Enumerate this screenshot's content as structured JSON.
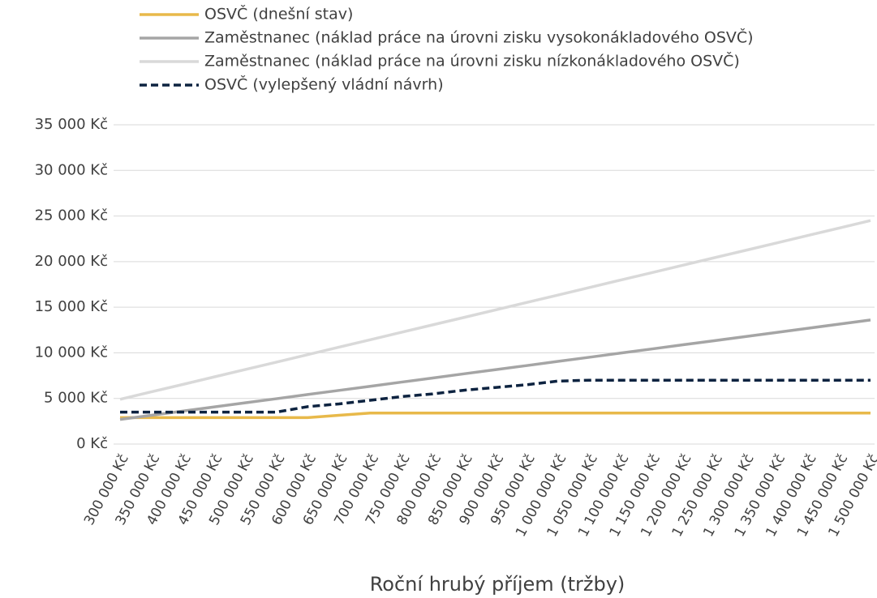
{
  "chart_data": {
    "type": "line",
    "x_label": "Roční hrubý příjem (tržby)",
    "categories": [
      "300 000 Kč",
      "350 000 Kč",
      "400 000 Kč",
      "450 000 Kč",
      "500 000 Kč",
      "550 000 Kč",
      "600 000 Kč",
      "650 000 Kč",
      "700 000 Kč",
      "750 000 Kč",
      "800 000 Kč",
      "850 000 Kč",
      "900 000 Kč",
      "950 000 Kč",
      "1 000 000 Kč",
      "1 050 000 Kč",
      "1 100 000 Kč",
      "1 150 000 Kč",
      "1 200 000 Kč",
      "1 250 000 Kč",
      "1 300 000 Kč",
      "1 350 000 Kč",
      "1 400 000 Kč",
      "1 450 000 Kč",
      "1 500 000 Kč"
    ],
    "series": [
      {
        "name": "OSVČ (dnešní stav)",
        "color": "#e8b94a",
        "dashed": false,
        "values": [
          2900,
          2900,
          2900,
          2900,
          2900,
          2900,
          2900,
          3150,
          3400,
          3400,
          3400,
          3400,
          3400,
          3400,
          3400,
          3400,
          3400,
          3400,
          3400,
          3400,
          3400,
          3400,
          3400,
          3400,
          3400
        ]
      },
      {
        "name": "Zaměstnanec (náklad práce na úrovni zisku vysokonákladového OSVČ)",
        "color": "#a5a5a5",
        "dashed": false,
        "values": [
          2700,
          3150,
          3610,
          4060,
          4520,
          4970,
          5430,
          5880,
          6330,
          6790,
          7240,
          7700,
          8150,
          8600,
          9060,
          9510,
          9970,
          10420,
          10880,
          11330,
          11780,
          12240,
          12690,
          13150,
          13600
        ]
      },
      {
        "name": "Zaměstnanec (náklad práce na úrovni zisku nízkonákladového OSVČ)",
        "color": "#d9d9d9",
        "dashed": false,
        "values": [
          4900,
          5720,
          6530,
          7350,
          8170,
          8980,
          9800,
          10620,
          11430,
          12250,
          13070,
          13880,
          14700,
          15520,
          16330,
          17150,
          17970,
          18780,
          19600,
          20420,
          21230,
          22050,
          22870,
          23680,
          24500
        ]
      },
      {
        "name": "OSVČ (vylepšený vládní návrh)",
        "color": "#0d2340",
        "dashed": true,
        "values": [
          3500,
          3500,
          3500,
          3500,
          3500,
          3500,
          4100,
          4400,
          4800,
          5200,
          5500,
          5900,
          6200,
          6500,
          6900,
          7000,
          7000,
          7000,
          7000,
          7000,
          7000,
          7000,
          7000,
          7000,
          7000
        ]
      }
    ],
    "ylim": [
      0,
      35000
    ],
    "yticks": [
      {
        "value": 0,
        "label": "0 Kč"
      },
      {
        "value": 5000,
        "label": "5 000 Kč"
      },
      {
        "value": 10000,
        "label": "10 000 Kč"
      },
      {
        "value": 15000,
        "label": "15 000 Kč"
      },
      {
        "value": 20000,
        "label": "20 000 Kč"
      },
      {
        "value": 25000,
        "label": "25 000 Kč"
      },
      {
        "value": 30000,
        "label": "30 000 Kč"
      },
      {
        "value": 35000,
        "label": "35 000 Kč"
      }
    ],
    "grid": true,
    "legend": "top"
  }
}
